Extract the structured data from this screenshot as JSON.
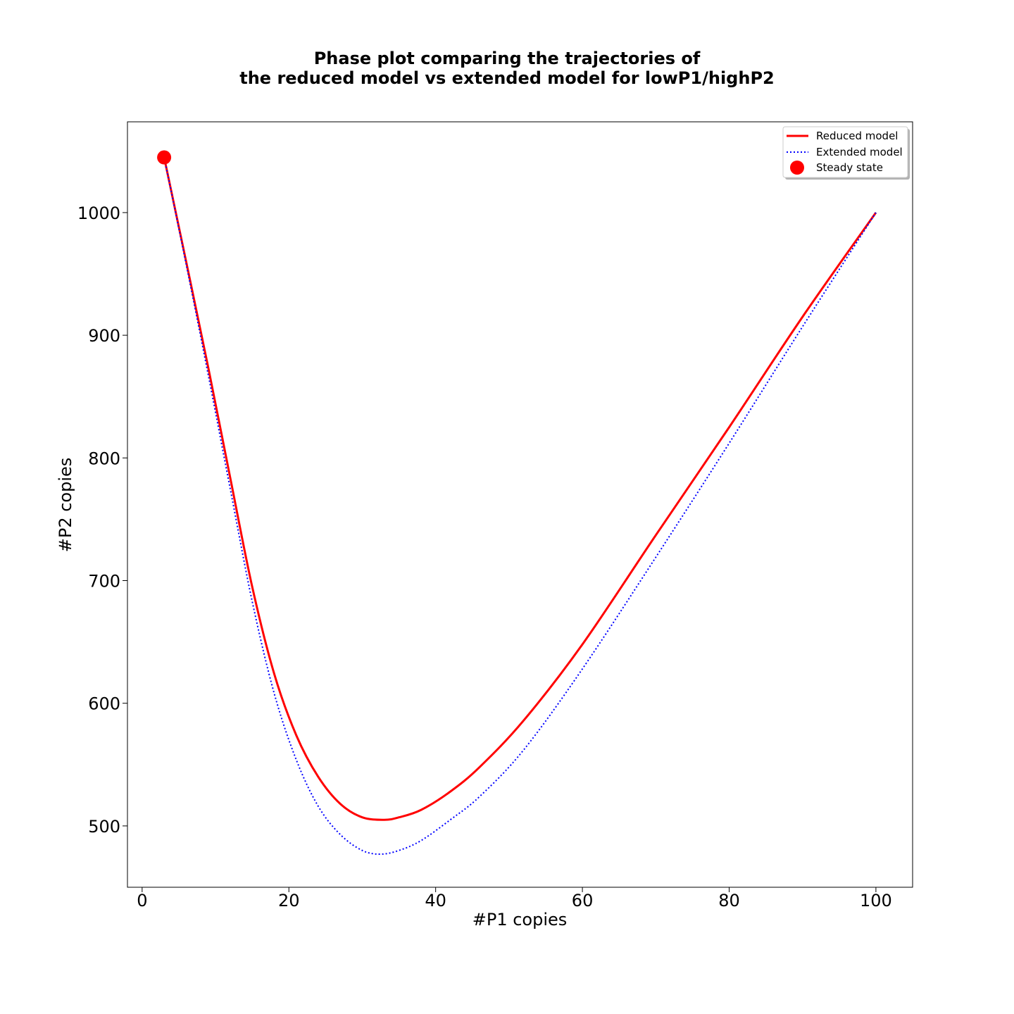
{
  "chart_data": {
    "type": "line",
    "title_line1": "Phase plot comparing the trajectories of",
    "title_line2": "the reduced model vs extended model for lowP1/highP2",
    "xlabel": "#P1 copies",
    "ylabel": "#P2 copies",
    "xlim": [
      -2,
      105
    ],
    "ylim": [
      450,
      1074
    ],
    "xticks": [
      0,
      20,
      40,
      60,
      80,
      100
    ],
    "yticks": [
      500,
      600,
      700,
      800,
      900,
      1000
    ],
    "grid": false,
    "legend_position": "top-right",
    "series": [
      {
        "name": "Reduced model",
        "color": "#ff0000",
        "style": "solid",
        "points": [
          [
            100,
            1000
          ],
          [
            90,
            915
          ],
          [
            80,
            825
          ],
          [
            70,
            737
          ],
          [
            60,
            648
          ],
          [
            52,
            586
          ],
          [
            46,
            548
          ],
          [
            42,
            528
          ],
          [
            38,
            513
          ],
          [
            35,
            507
          ],
          [
            33,
            505
          ],
          [
            30,
            507
          ],
          [
            27,
            518
          ],
          [
            24,
            540
          ],
          [
            21,
            574
          ],
          [
            18,
            624
          ],
          [
            15,
            695
          ],
          [
            12,
            784
          ],
          [
            9,
            874
          ],
          [
            6,
            960
          ],
          [
            3,
            1045
          ]
        ]
      },
      {
        "name": "Extended model",
        "color": "#0000ff",
        "style": "dotted",
        "points": [
          [
            100,
            1000
          ],
          [
            90,
            907
          ],
          [
            80,
            812
          ],
          [
            70,
            719
          ],
          [
            60,
            628
          ],
          [
            52,
            562
          ],
          [
            46,
            524
          ],
          [
            42,
            505
          ],
          [
            38,
            488
          ],
          [
            35,
            480
          ],
          [
            32.5,
            477
          ],
          [
            30,
            480
          ],
          [
            27,
            493
          ],
          [
            24,
            516
          ],
          [
            21,
            554
          ],
          [
            18,
            608
          ],
          [
            15,
            683
          ],
          [
            12,
            775
          ],
          [
            9,
            868
          ],
          [
            6,
            958
          ],
          [
            3,
            1045
          ]
        ]
      }
    ],
    "markers": [
      {
        "name": "Steady state",
        "color": "#ff0000",
        "x": 3,
        "y": 1045
      }
    ]
  }
}
